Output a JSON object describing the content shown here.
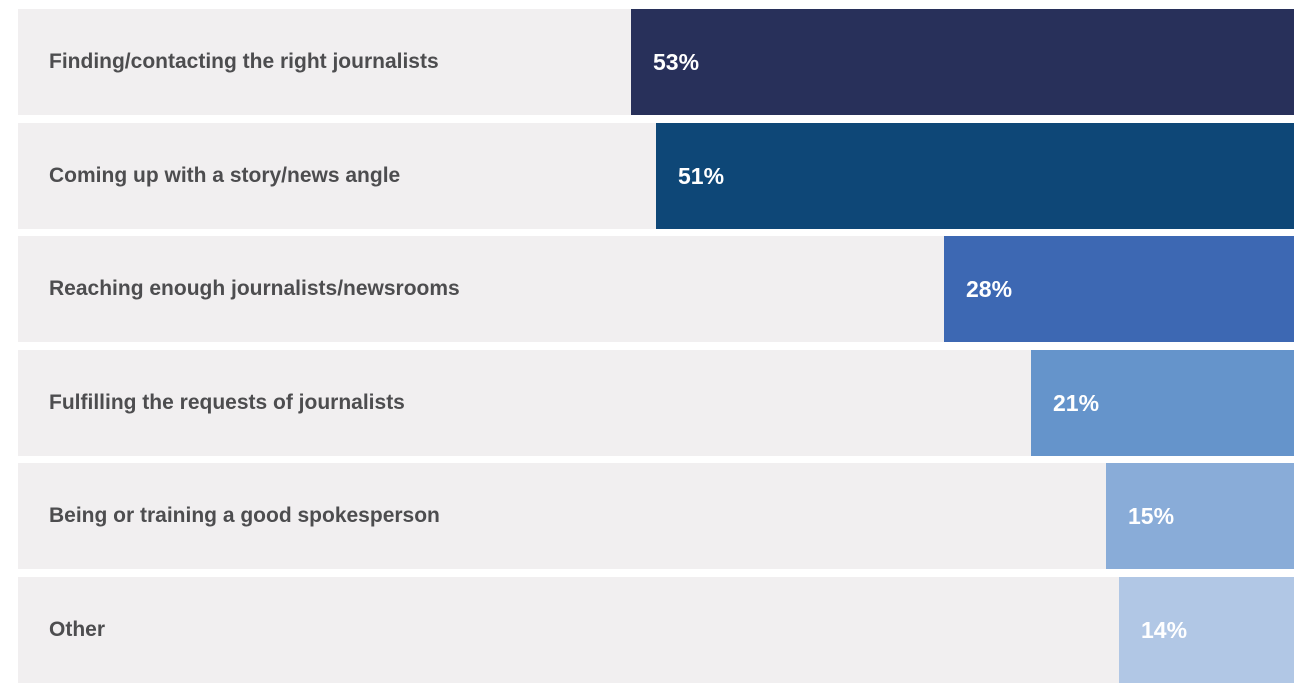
{
  "chart_data": {
    "type": "bar",
    "orientation": "horizontal",
    "categories": [
      "Finding/contacting the right journalists",
      "Coming up with a story/news angle",
      "Reaching enough journalists/newsrooms",
      "Fulfilling the requests of journalists",
      "Being or training a good spokesperson",
      "Other"
    ],
    "values": [
      53,
      51,
      28,
      21,
      15,
      14
    ],
    "value_labels": [
      "53%",
      "51%",
      "28%",
      "21%",
      "15%",
      "14%"
    ],
    "unit": "%",
    "xlim": [
      0,
      100
    ],
    "bar_colors": [
      "#28305a",
      "#0e4777",
      "#3d68b3",
      "#6594cb",
      "#89acd8",
      "#b1c7e5"
    ],
    "track_color": "#f1eff0",
    "grid": false,
    "legend": "none",
    "title": "",
    "xlabel": "",
    "ylabel": ""
  }
}
